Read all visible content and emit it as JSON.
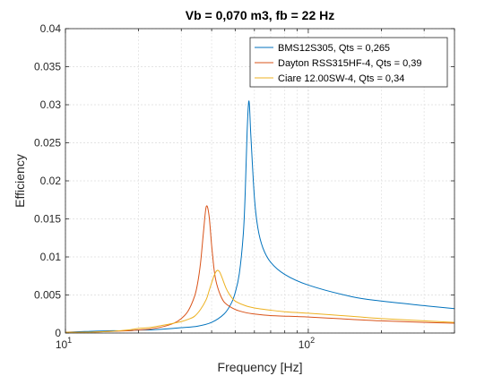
{
  "chart_data": {
    "type": "line",
    "title": "Vb = 0,070 m3, fb = 22 Hz",
    "xlabel": "Frequency [Hz]",
    "ylabel": "Efficiency",
    "xscale": "log",
    "xlim": [
      10,
      400
    ],
    "ylim": [
      0,
      0.04
    ],
    "yticks": [
      0,
      0.005,
      0.01,
      0.015,
      0.02,
      0.025,
      0.03,
      0.035,
      0.04
    ],
    "ytick_labels": [
      "0",
      "0.005",
      "0.01",
      "0.015",
      "0.02",
      "0.025",
      "0.03",
      "0.035",
      "0.04"
    ],
    "xticks": [
      10,
      100
    ],
    "xtick_labels": [
      {
        "base": "10",
        "exp": "1"
      },
      {
        "base": "10",
        "exp": "2"
      }
    ],
    "grid": true,
    "legend_position": "top-right",
    "series": [
      {
        "name": "BMS12S305, Qts = 0,265",
        "color": "#0072BD",
        "x": [
          10,
          12,
          15,
          18,
          20,
          22,
          25,
          30,
          35,
          40,
          45,
          48,
          50,
          52,
          54,
          55,
          56,
          57,
          58,
          60,
          62,
          65,
          70,
          80,
          100,
          150,
          200,
          300,
          400
        ],
        "y": [
          0.0001,
          0.0002,
          0.0003,
          0.0003,
          0.0004,
          0.0004,
          0.0005,
          0.0007,
          0.0009,
          0.0014,
          0.0025,
          0.0038,
          0.0053,
          0.0078,
          0.013,
          0.0185,
          0.0265,
          0.0305,
          0.026,
          0.0178,
          0.0138,
          0.0112,
          0.0093,
          0.0077,
          0.0063,
          0.0048,
          0.0042,
          0.0036,
          0.0032
        ]
      },
      {
        "name": "Dayton RSS315HF-4, Qts = 0,39",
        "color": "#D95319",
        "x": [
          10,
          12,
          15,
          18,
          20,
          22,
          25,
          28,
          30,
          32,
          34,
          35,
          36,
          37,
          38,
          39,
          40,
          41,
          42,
          44,
          46,
          50,
          55,
          60,
          70,
          100,
          150,
          200,
          300,
          400
        ],
        "y": [
          0.0001,
          0.0001,
          0.0002,
          0.0003,
          0.0004,
          0.0005,
          0.0008,
          0.0013,
          0.0019,
          0.0029,
          0.0048,
          0.0065,
          0.0092,
          0.0132,
          0.0166,
          0.0155,
          0.0115,
          0.0082,
          0.0064,
          0.0046,
          0.0038,
          0.0031,
          0.0027,
          0.0025,
          0.0023,
          0.0021,
          0.0018,
          0.0016,
          0.0014,
          0.0013
        ]
      },
      {
        "name": "Ciare 12.00SW-4, Qts = 0,34",
        "color": "#EDB120",
        "x": [
          10,
          12,
          15,
          18,
          20,
          22,
          25,
          28,
          30,
          32,
          34,
          36,
          38,
          39,
          40,
          41,
          42,
          43,
          44,
          46,
          48,
          50,
          55,
          60,
          70,
          80,
          100,
          150,
          200,
          300,
          400
        ],
        "y": [
          0.0001,
          0.0001,
          0.0002,
          0.0004,
          0.0006,
          0.0007,
          0.001,
          0.0013,
          0.0015,
          0.0018,
          0.0022,
          0.0031,
          0.0044,
          0.0055,
          0.0066,
          0.0076,
          0.0082,
          0.0081,
          0.0074,
          0.0058,
          0.0048,
          0.0042,
          0.0036,
          0.0033,
          0.003,
          0.0028,
          0.0026,
          0.0022,
          0.0019,
          0.0016,
          0.0014
        ]
      }
    ]
  }
}
